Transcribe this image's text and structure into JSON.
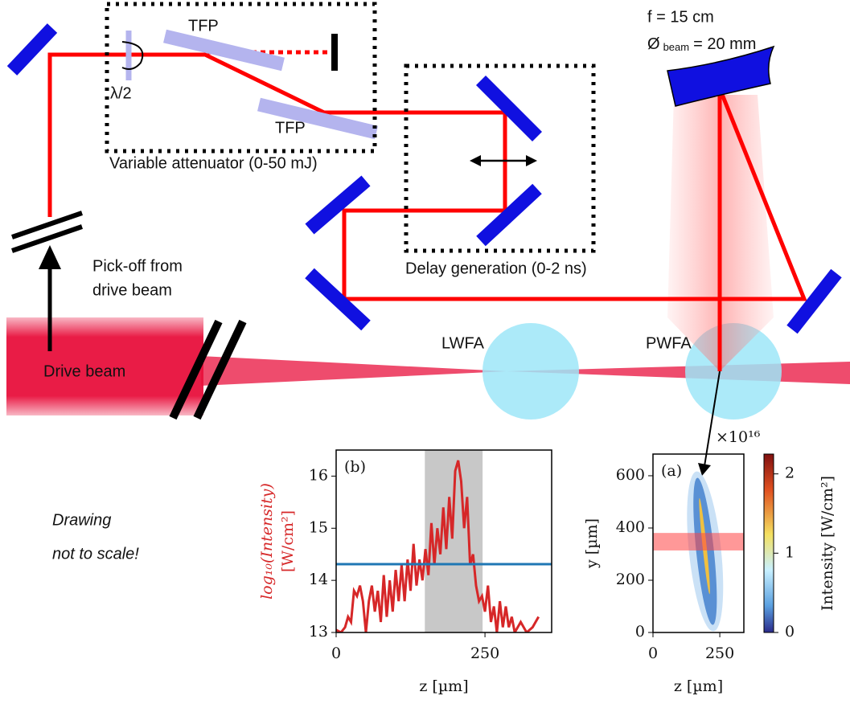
{
  "diagram": {
    "focal": "f = 15 cm",
    "diameter_symbol": "Ø",
    "diameter_sub": "beam",
    "diameter_rest": "= 20 mm",
    "tfp_1": "TFP",
    "tfp_2": "TFP",
    "waveplate": "λ/2",
    "attenuator": "Variable attenuator (0-50 mJ)",
    "delay": "Delay generation (0-2 ns)",
    "pickoff": [
      "Pick-off from",
      "drive beam"
    ],
    "drive_beam": "Drive beam",
    "lwfa": "LWFA",
    "pwfa": "PWFA",
    "note": [
      "Drawing",
      "not to scale!"
    ]
  },
  "chart_data": [
    {
      "type": "line",
      "panel": "(b)",
      "xlabel": "z [µm]",
      "ylabel": [
        "log₁₀(Intensity)",
        "[W/cm²]"
      ],
      "xlim": [
        0,
        362
      ],
      "ylim": [
        13,
        16.5
      ],
      "xticks": [
        0,
        250
      ],
      "yticks": [
        13,
        14,
        15,
        16
      ],
      "shaded_x": [
        149,
        246
      ],
      "hline": {
        "value": 14.31,
        "color": "#1f77b4"
      },
      "x": [
        0,
        8,
        15,
        20,
        25,
        30,
        35,
        40,
        45,
        50,
        55,
        60,
        65,
        70,
        75,
        80,
        85,
        90,
        95,
        100,
        105,
        110,
        115,
        120,
        125,
        130,
        135,
        140,
        145,
        150,
        155,
        160,
        165,
        170,
        175,
        180,
        185,
        190,
        195,
        200,
        205,
        210,
        215,
        220,
        225,
        230,
        235,
        240,
        245,
        250,
        255,
        260,
        265,
        270,
        275,
        280,
        285,
        290,
        295,
        300,
        310,
        320,
        330,
        340
      ],
      "series": [
        {
          "color": "#d62728",
          "values": [
            13.05,
            13.0,
            13.1,
            13.3,
            13.2,
            13.8,
            13.7,
            13.9,
            13.6,
            13.0,
            13.6,
            13.9,
            13.4,
            13.8,
            13.2,
            14.1,
            13.3,
            14.0,
            13.4,
            14.2,
            13.6,
            14.3,
            13.6,
            14.4,
            13.8,
            14.7,
            13.9,
            14.4,
            14.0,
            14.6,
            14.1,
            15.1,
            14.3,
            15.0,
            14.5,
            15.4,
            14.6,
            15.6,
            14.8,
            16.1,
            16.3,
            15.9,
            15.0,
            15.6,
            14.3,
            14.5,
            13.9,
            13.6,
            13.7,
            13.4,
            13.9,
            13.2,
            13.5,
            13.0,
            13.6,
            13.1,
            13.5,
            13.1,
            13.3,
            13.0,
            13.2,
            13.0,
            13.1,
            13.3
          ]
        }
      ]
    },
    {
      "type": "image",
      "panel": "(a)",
      "xlabel": "z [µm]",
      "ylabel": "y [µm]",
      "xlim": [
        0,
        340
      ],
      "ylim": [
        0,
        683
      ],
      "xticks": [
        0,
        250
      ],
      "yticks": [
        0,
        200,
        400,
        600
      ],
      "band_y": [
        314,
        381
      ],
      "colorbar": {
        "label": "Intensity [W/cm²]",
        "lim": [
          0,
          2.25
        ],
        "ticks": [
          0,
          1,
          2
        ],
        "multiplier": "×10¹⁶"
      }
    }
  ]
}
